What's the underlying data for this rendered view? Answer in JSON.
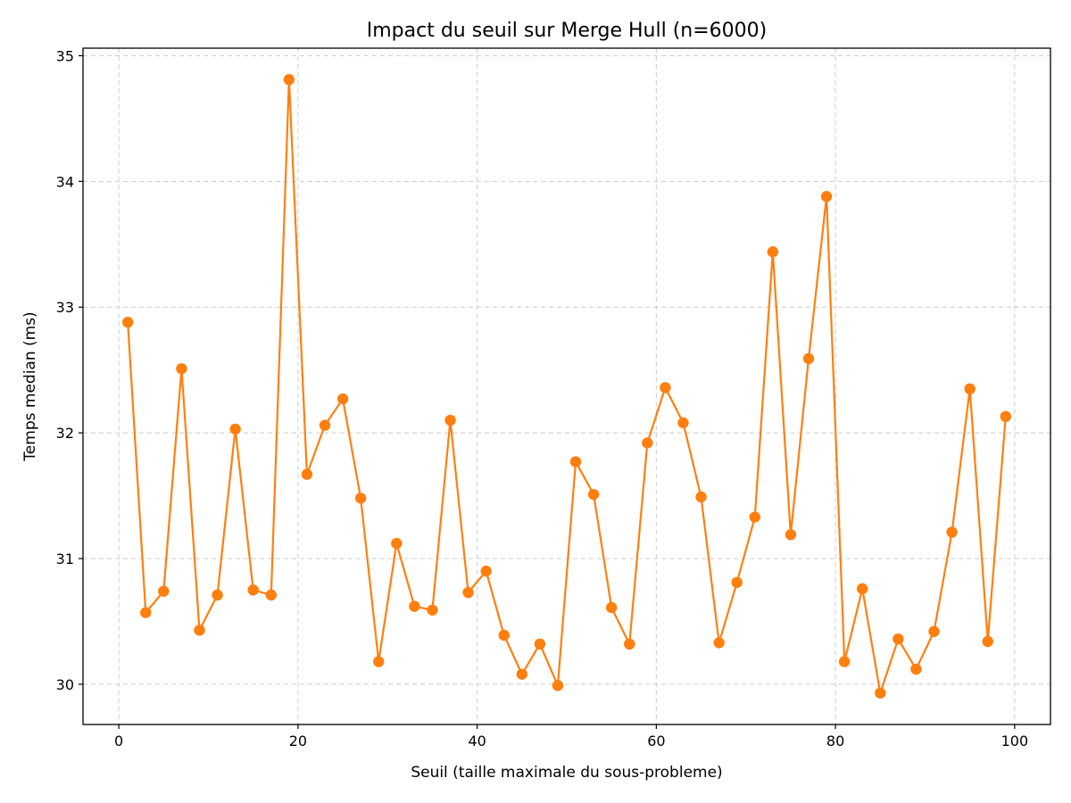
{
  "chart_data": {
    "type": "line",
    "title": "Impact du seuil sur Merge Hull (n=6000)",
    "xlabel": "Seuil (taille maximale du sous-probleme)",
    "ylabel": "Temps median (ms)",
    "xlim": [
      -4,
      104
    ],
    "ylim": [
      29.68,
      35.06
    ],
    "xticks": [
      0,
      20,
      40,
      60,
      80,
      100
    ],
    "yticks": [
      30,
      31,
      32,
      33,
      34,
      35
    ],
    "grid": true,
    "color": "#ff7f0e",
    "x": [
      1,
      3,
      5,
      7,
      9,
      11,
      13,
      15,
      17,
      19,
      21,
      23,
      25,
      27,
      29,
      31,
      33,
      35,
      37,
      39,
      41,
      43,
      45,
      47,
      49,
      51,
      53,
      55,
      57,
      59,
      61,
      63,
      65,
      67,
      69,
      71,
      73,
      75,
      77,
      79,
      81,
      83,
      85,
      87,
      89,
      91,
      93,
      95,
      97,
      99
    ],
    "y": [
      32.88,
      30.57,
      30.74,
      32.51,
      30.43,
      30.71,
      32.03,
      30.75,
      30.71,
      34.81,
      31.67,
      32.06,
      32.27,
      31.48,
      30.18,
      31.12,
      30.62,
      30.59,
      32.1,
      30.73,
      30.9,
      30.39,
      30.08,
      30.32,
      29.99,
      31.77,
      31.51,
      30.61,
      30.32,
      31.92,
      32.36,
      32.08,
      31.49,
      30.33,
      30.81,
      31.33,
      33.44,
      31.19,
      32.59,
      33.88,
      30.18,
      30.76,
      29.93,
      30.36,
      30.12,
      30.42,
      31.21,
      32.35,
      30.34,
      32.13
    ]
  }
}
